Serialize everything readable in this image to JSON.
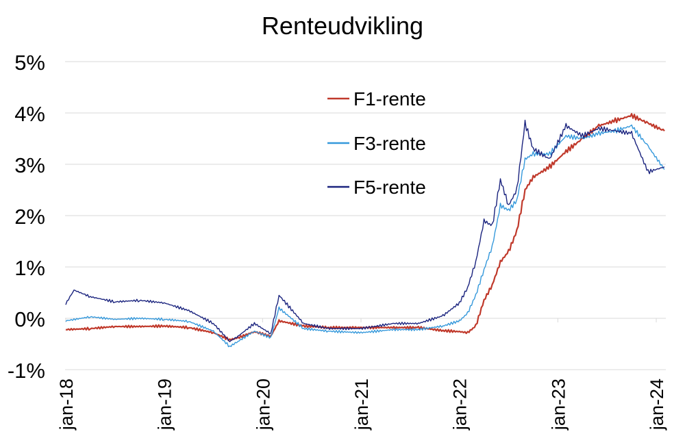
{
  "chart_data": {
    "type": "line",
    "title": "Renteudvikling",
    "xlabel": "",
    "ylabel": "",
    "x_ticks": [
      "jan-18",
      "jan-19",
      "jan-20",
      "jan-21",
      "jan-22",
      "jan-23",
      "jan-24"
    ],
    "y_ticks": [
      "-1%",
      "0%",
      "1%",
      "2%",
      "3%",
      "4%",
      "5%"
    ],
    "ylim": [
      -1,
      5
    ],
    "xlim": [
      "2018-01",
      "2024-02"
    ],
    "grid": "horizontal",
    "legend_position": "top-center",
    "series": [
      {
        "name": "F1-rente",
        "color": "#c0392b",
        "points": [
          [
            "2018-01",
            -0.22
          ],
          [
            "2018-04",
            -0.2
          ],
          [
            "2018-07",
            -0.16
          ],
          [
            "2018-10",
            -0.16
          ],
          [
            "2019-01",
            -0.15
          ],
          [
            "2019-04",
            -0.18
          ],
          [
            "2019-07",
            -0.28
          ],
          [
            "2019-09",
            -0.42
          ],
          [
            "2019-10",
            -0.38
          ],
          [
            "2019-12",
            -0.26
          ],
          [
            "2020-02",
            -0.35
          ],
          [
            "2020-03",
            -0.05
          ],
          [
            "2020-06",
            -0.15
          ],
          [
            "2020-09",
            -0.18
          ],
          [
            "2021-01",
            -0.18
          ],
          [
            "2021-05",
            -0.18
          ],
          [
            "2021-08",
            -0.18
          ],
          [
            "2021-11",
            -0.24
          ],
          [
            "2022-01",
            -0.26
          ],
          [
            "2022-02",
            -0.28
          ],
          [
            "2022-03",
            -0.15
          ],
          [
            "2022-04",
            0.35
          ],
          [
            "2022-05",
            0.65
          ],
          [
            "2022-06",
            1.1
          ],
          [
            "2022-07",
            1.3
          ],
          [
            "2022-08",
            1.7
          ],
          [
            "2022-09",
            2.5
          ],
          [
            "2022-10",
            2.75
          ],
          [
            "2022-12",
            2.95
          ],
          [
            "2023-02",
            3.25
          ],
          [
            "2023-04",
            3.5
          ],
          [
            "2023-06",
            3.75
          ],
          [
            "2023-08",
            3.85
          ],
          [
            "2023-10",
            3.95
          ],
          [
            "2023-12",
            3.8
          ],
          [
            "2024-02",
            3.65
          ]
        ]
      },
      {
        "name": "F3-rente",
        "color": "#3498db",
        "points": [
          [
            "2018-01",
            -0.05
          ],
          [
            "2018-04",
            0.03
          ],
          [
            "2018-07",
            -0.02
          ],
          [
            "2018-10",
            0.0
          ],
          [
            "2019-01",
            -0.02
          ],
          [
            "2019-04",
            -0.06
          ],
          [
            "2019-07",
            -0.25
          ],
          [
            "2019-09",
            -0.55
          ],
          [
            "2019-10",
            -0.45
          ],
          [
            "2019-12",
            -0.25
          ],
          [
            "2020-02",
            -0.38
          ],
          [
            "2020-03",
            0.2
          ],
          [
            "2020-06",
            -0.2
          ],
          [
            "2020-09",
            -0.25
          ],
          [
            "2021-01",
            -0.28
          ],
          [
            "2021-05",
            -0.22
          ],
          [
            "2021-08",
            -0.22
          ],
          [
            "2021-11",
            -0.15
          ],
          [
            "2022-01",
            -0.05
          ],
          [
            "2022-02",
            0.1
          ],
          [
            "2022-03",
            0.45
          ],
          [
            "2022-04",
            0.95
          ],
          [
            "2022-05",
            1.4
          ],
          [
            "2022-06",
            2.2
          ],
          [
            "2022-07",
            2.1
          ],
          [
            "2022-08",
            2.3
          ],
          [
            "2022-09",
            3.1
          ],
          [
            "2022-10",
            3.2
          ],
          [
            "2022-12",
            3.2
          ],
          [
            "2023-02",
            3.55
          ],
          [
            "2023-04",
            3.5
          ],
          [
            "2023-06",
            3.6
          ],
          [
            "2023-08",
            3.65
          ],
          [
            "2023-10",
            3.75
          ],
          [
            "2023-12",
            3.35
          ],
          [
            "2024-02",
            2.9
          ]
        ]
      },
      {
        "name": "F5-rente",
        "color": "#1a237e",
        "points": [
          [
            "2018-01",
            0.28
          ],
          [
            "2018-02",
            0.55
          ],
          [
            "2018-04",
            0.42
          ],
          [
            "2018-07",
            0.32
          ],
          [
            "2018-10",
            0.35
          ],
          [
            "2019-01",
            0.3
          ],
          [
            "2019-04",
            0.15
          ],
          [
            "2019-07",
            -0.1
          ],
          [
            "2019-09",
            -0.45
          ],
          [
            "2019-10",
            -0.35
          ],
          [
            "2019-12",
            -0.1
          ],
          [
            "2020-02",
            -0.3
          ],
          [
            "2020-03",
            0.45
          ],
          [
            "2020-06",
            -0.1
          ],
          [
            "2020-09",
            -0.2
          ],
          [
            "2021-01",
            -0.2
          ],
          [
            "2021-05",
            -0.1
          ],
          [
            "2021-08",
            -0.1
          ],
          [
            "2021-11",
            0.05
          ],
          [
            "2022-01",
            0.3
          ],
          [
            "2022-02",
            0.6
          ],
          [
            "2022-03",
            1.1
          ],
          [
            "2022-04",
            1.9
          ],
          [
            "2022-05",
            1.8
          ],
          [
            "2022-06",
            2.7
          ],
          [
            "2022-07",
            2.2
          ],
          [
            "2022-08",
            2.5
          ],
          [
            "2022-09",
            3.8
          ],
          [
            "2022-10",
            3.3
          ],
          [
            "2022-12",
            3.1
          ],
          [
            "2023-02",
            3.75
          ],
          [
            "2023-04",
            3.55
          ],
          [
            "2023-06",
            3.7
          ],
          [
            "2023-08",
            3.65
          ],
          [
            "2023-10",
            3.6
          ],
          [
            "2023-12",
            2.85
          ],
          [
            "2024-02",
            2.95
          ]
        ]
      }
    ]
  }
}
